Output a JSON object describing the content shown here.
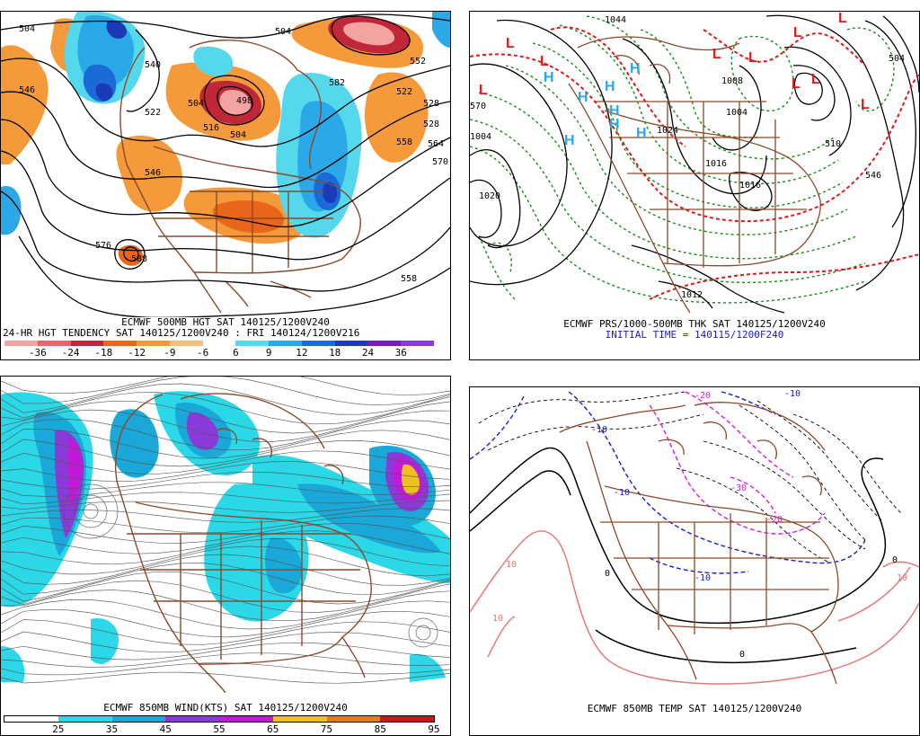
{
  "panels": {
    "p1": {
      "caption1": "ECMWF 500MB HGT SAT 140125/1200V240",
      "caption2": "24-HR HGT TENDENCY SAT 140125/1200V240 : FRI 140124/1200V216",
      "scale_labels": [
        "-36",
        "-24",
        "-18",
        "-12",
        "-9",
        "-6",
        "6",
        "9",
        "12",
        "18",
        "24",
        "36"
      ],
      "scale_colors": [
        "#f4a3a3",
        "#e8646a",
        "#c0283a",
        "#e8651a",
        "#f59a3a",
        "#f6c07a",
        "#ffffff",
        "#55d8ec",
        "#2aa8e8",
        "#1a6ad8",
        "#1a3ab8",
        "#7a1ab8",
        "#8a3ad8"
      ],
      "contour_labels": [
        "504",
        "504",
        "540",
        "546",
        "552",
        "504",
        "516",
        "522",
        "528",
        "546",
        "558",
        "564",
        "570",
        "576",
        "558",
        "498",
        "504",
        "522",
        "528",
        "582",
        "588"
      ]
    },
    "p2": {
      "caption1": "ECMWF PRS/1000-500MB THK SAT 140125/1200V240",
      "caption2": "INITIAL TIME = 140115/1200F240",
      "high_label": "H",
      "low_label": "L",
      "contour_labels": [
        "1044",
        "1020",
        "1012",
        "1008",
        "1004",
        "1024",
        "1016",
        "1004",
        "1016",
        "510",
        "546",
        "504",
        "570"
      ]
    },
    "p3": {
      "caption1": "ECMWF 850MB WIND(KTS) SAT 140125/1200V240",
      "scale_labels": [
        "25",
        "35",
        "45",
        "55",
        "65",
        "75",
        "85",
        "95"
      ],
      "scale_colors": [
        "#ffffff",
        "#2ad8e8",
        "#1aa8d8",
        "#8a3ad8",
        "#c01ad8",
        "#f0c020",
        "#e87a1a",
        "#c81a1a"
      ]
    },
    "p4": {
      "caption1": "ECMWF 850MB TEMP SAT 140125/1200V240",
      "contour_labels": [
        "-10",
        "-10",
        "-20",
        "-10",
        "-20",
        "-30",
        "-10",
        "0",
        "10",
        "10",
        "0",
        "10",
        "0"
      ]
    }
  }
}
